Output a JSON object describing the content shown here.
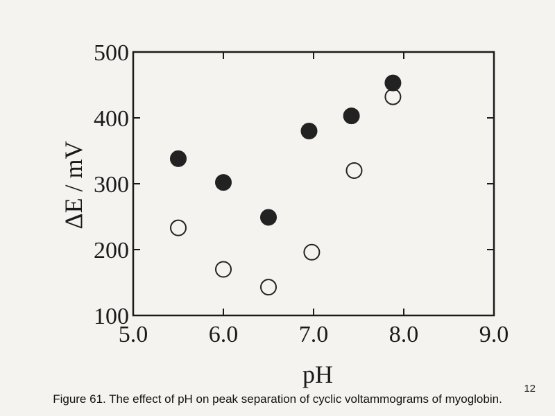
{
  "caption": "Figure 61. The effect of pH on peak separation of cyclic voltammograms of myoglobin.",
  "page_number": "12",
  "chart_data": {
    "type": "scatter",
    "xlabel": "pH",
    "ylabel": "ΔE / mV",
    "xlim": [
      5.0,
      9.0
    ],
    "ylim": [
      100,
      500
    ],
    "x_ticks": [
      5.0,
      6.0,
      7.0,
      8.0,
      9.0
    ],
    "x_tick_labels": [
      "5.0",
      "6.0",
      "7.0",
      "8.0",
      "9.0"
    ],
    "y_ticks": [
      100,
      200,
      300,
      400,
      500
    ],
    "y_tick_labels": [
      "100",
      "200",
      "300",
      "400",
      "500"
    ],
    "grid": false,
    "series": [
      {
        "marker": "filled-circle",
        "color": "#222222",
        "points": [
          {
            "x": 5.5,
            "y": 338
          },
          {
            "x": 6.0,
            "y": 302
          },
          {
            "x": 6.5,
            "y": 249
          },
          {
            "x": 6.95,
            "y": 380
          },
          {
            "x": 7.42,
            "y": 403
          },
          {
            "x": 7.88,
            "y": 453
          }
        ]
      },
      {
        "marker": "open-circle",
        "color": "#222222",
        "points": [
          {
            "x": 5.5,
            "y": 233
          },
          {
            "x": 6.0,
            "y": 170
          },
          {
            "x": 6.5,
            "y": 143
          },
          {
            "x": 6.98,
            "y": 196
          },
          {
            "x": 7.45,
            "y": 320
          },
          {
            "x": 7.88,
            "y": 432
          }
        ]
      }
    ]
  }
}
